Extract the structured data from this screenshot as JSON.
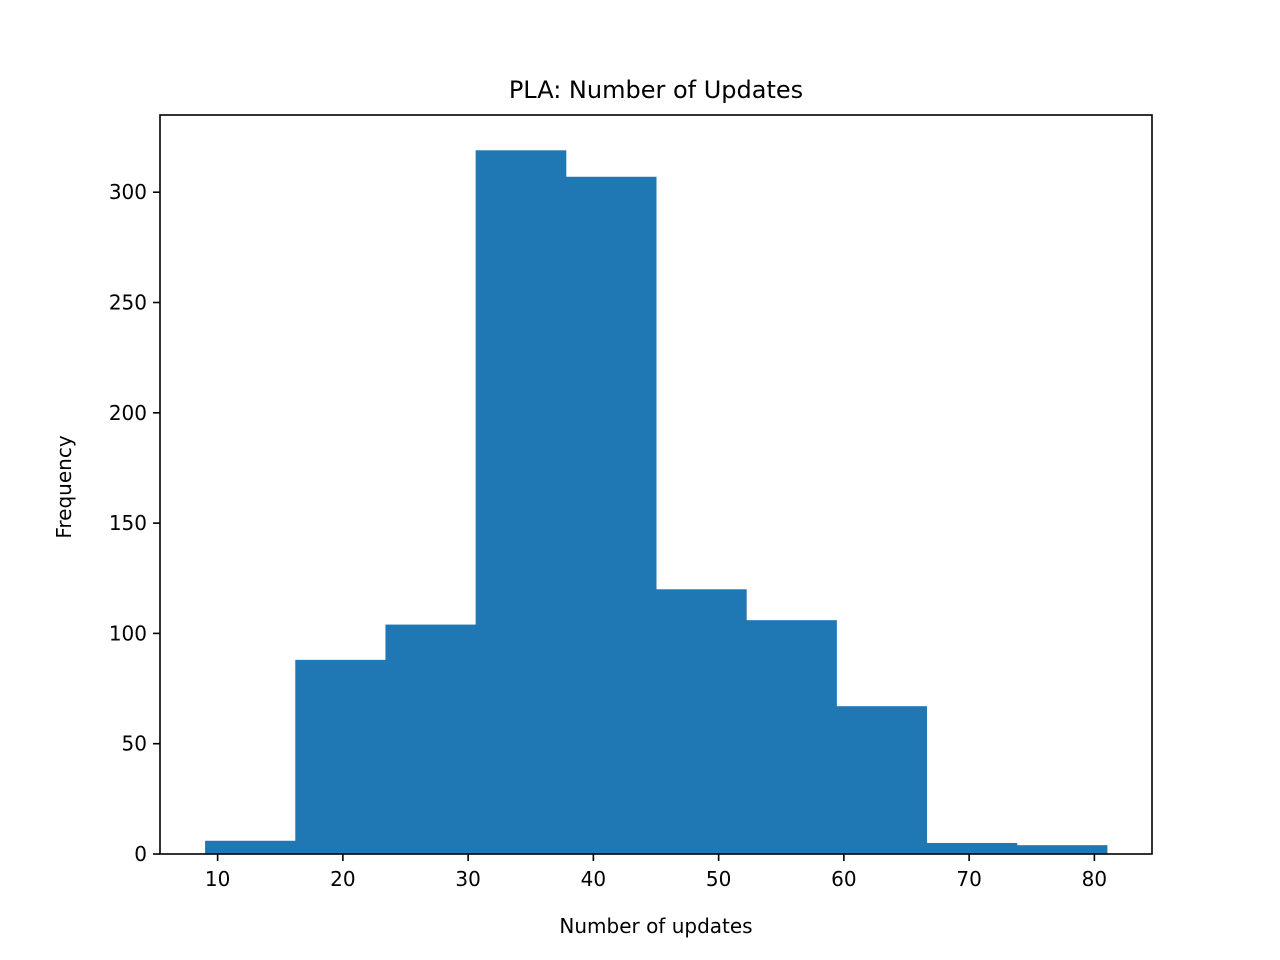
{
  "chart_data": {
    "type": "bar",
    "title": "PLA: Number of Updates",
    "xlabel": "Number of updates",
    "ylabel": "Frequency",
    "xlim": [
      5.4,
      84.6
    ],
    "ylim": [
      0,
      335
    ],
    "xticks": [
      10,
      20,
      30,
      40,
      50,
      60,
      70,
      80
    ],
    "yticks": [
      0,
      50,
      100,
      150,
      200,
      250,
      300
    ],
    "bin_edges": [
      9.0,
      16.2,
      23.4,
      30.6,
      37.8,
      45.0,
      52.2,
      59.4,
      66.6,
      73.8,
      81.0
    ],
    "values": [
      6,
      88,
      104,
      319,
      307,
      120,
      106,
      67,
      5,
      4
    ],
    "bar_color": "#1f77b4",
    "grid": false,
    "legend": "none"
  }
}
